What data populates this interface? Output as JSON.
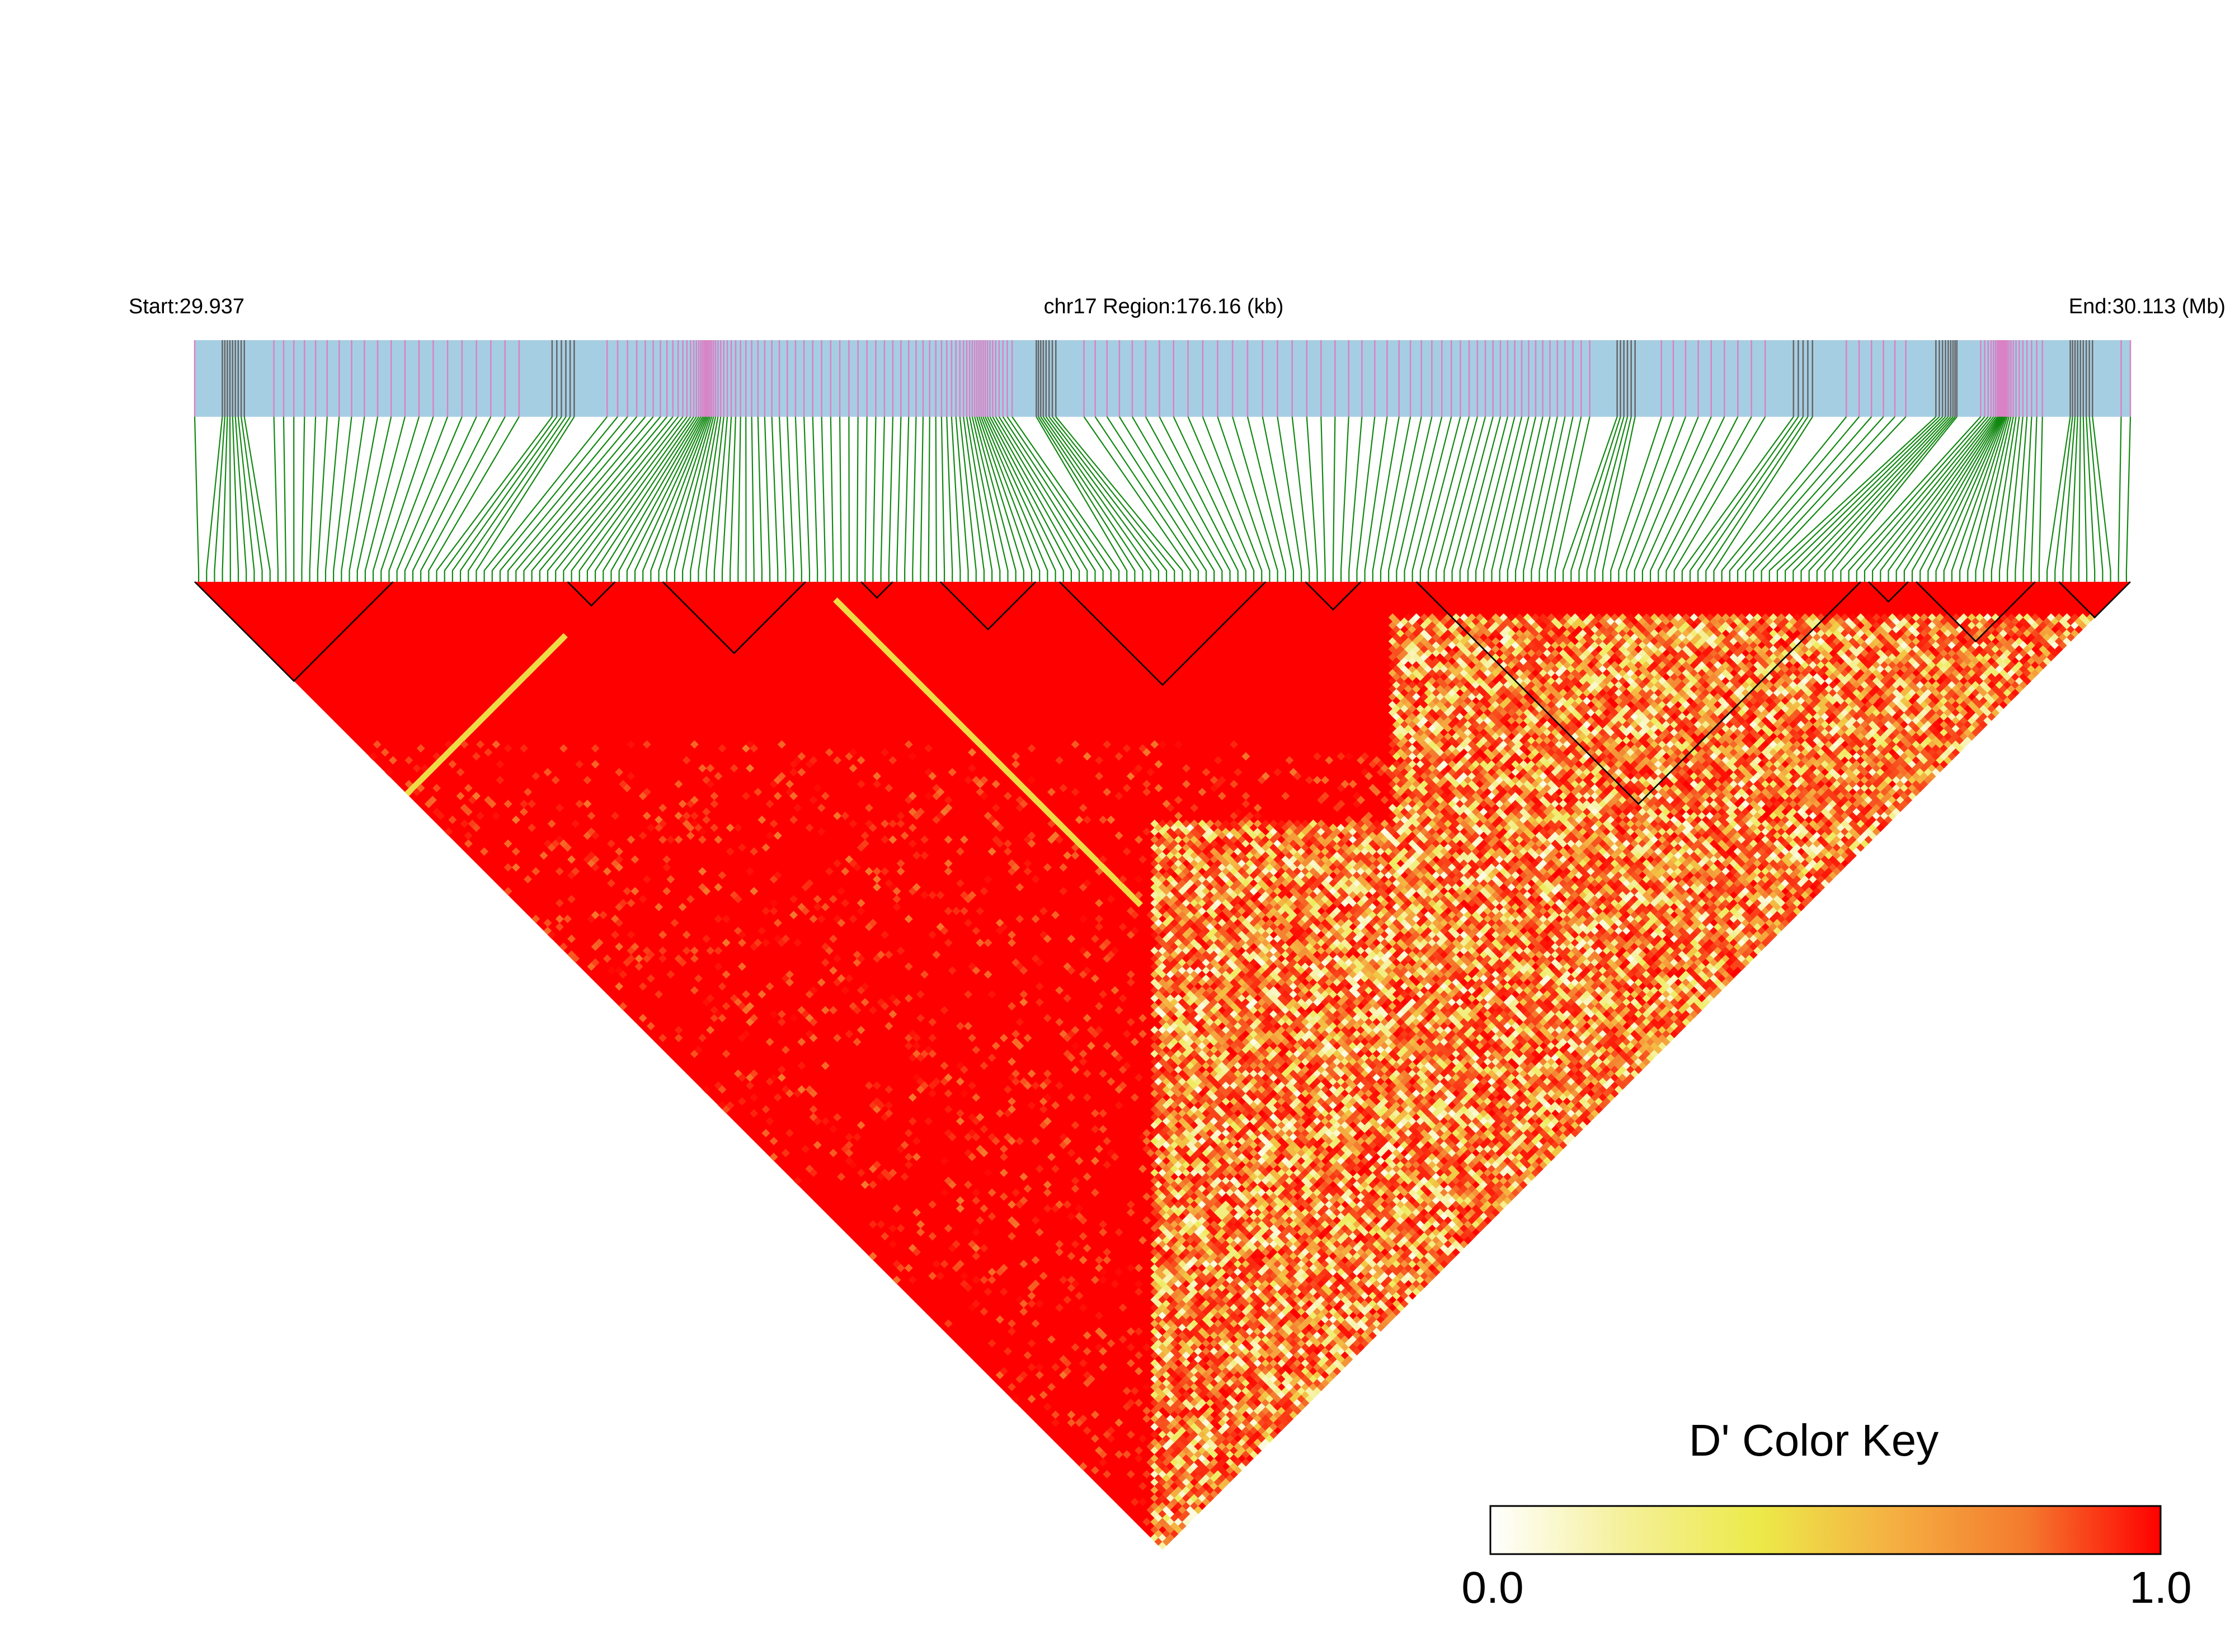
{
  "chart_data": {
    "type": "heatmap",
    "subtype": "linkage-disequilibrium",
    "header": {
      "start_label": "Start:29.937",
      "region_label": "chr17 Region:176.16 (kb)",
      "end_label": "End:30.113 (Mb)"
    },
    "region": {
      "chromosome": "chr17",
      "start_mb": 29.937,
      "end_mb": 30.113,
      "length_kb": 176.16
    },
    "snp_count": 244,
    "metric": "D'",
    "color_key": {
      "title": "D' Color Key",
      "min_label": "0.0",
      "max_label": "1.0",
      "range": [
        0.0,
        1.0
      ],
      "stops": [
        "#ffffff",
        "#f5f09a",
        "#ecea49",
        "#f5b042",
        "#f47a2e",
        "#ff0000"
      ]
    },
    "colors": {
      "track": "#a6cee3",
      "track_marker": "#d982c5",
      "track_marker_dense": "#666666",
      "connector": "#118811",
      "ld_high": "#ff0000",
      "block_outline": "#000000"
    },
    "ld_blocks": [
      {
        "from_snp": 1,
        "to_snp": 25
      },
      {
        "from_snp": 48,
        "to_snp": 53
      },
      {
        "from_snp": 60,
        "to_snp": 77
      },
      {
        "from_snp": 85,
        "to_snp": 88
      },
      {
        "from_snp": 95,
        "to_snp": 106
      },
      {
        "from_snp": 110,
        "to_snp": 135
      },
      {
        "from_snp": 141,
        "to_snp": 147
      },
      {
        "from_snp": 155,
        "to_snp": 210
      },
      {
        "from_snp": 212,
        "to_snp": 216
      },
      {
        "from_snp": 218,
        "to_snp": 232
      },
      {
        "from_snp": 236,
        "to_snp": 244
      }
    ]
  }
}
